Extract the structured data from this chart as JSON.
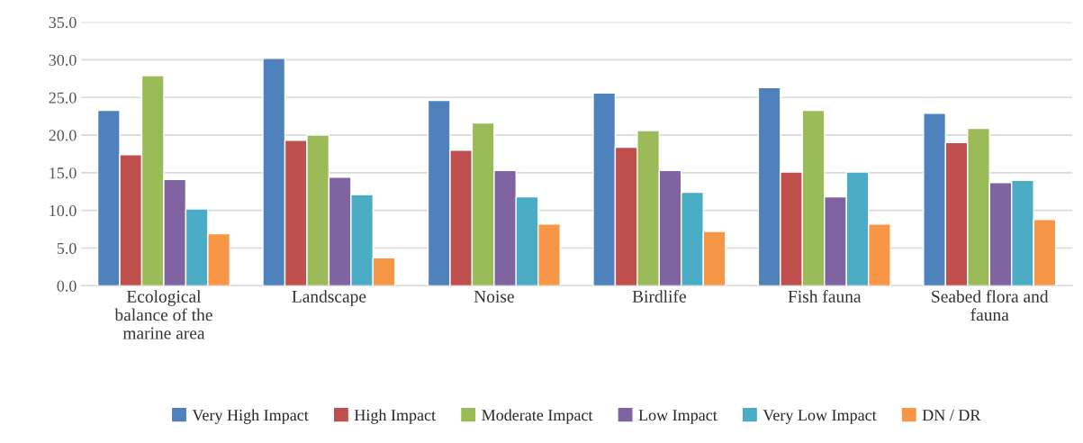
{
  "chart_data": {
    "type": "bar",
    "categories": [
      "Ecological\nbalance of the\nmarine area",
      "Landscape",
      "Noise",
      "Birdlife",
      "Fish fauna",
      "Seabed flora and\nfauna"
    ],
    "series": [
      {
        "name": "Very High Impact",
        "color": "#4f81bd",
        "values": [
          23.3,
          30.2,
          24.6,
          25.6,
          26.3,
          22.9
        ]
      },
      {
        "name": "High Impact",
        "color": "#c0504d",
        "values": [
          17.4,
          19.3,
          18.0,
          18.4,
          15.1,
          19.0
        ]
      },
      {
        "name": "Moderate Impact",
        "color": "#9bbb59",
        "values": [
          27.9,
          20.0,
          21.6,
          20.6,
          23.3,
          20.9
        ]
      },
      {
        "name": "Low Impact",
        "color": "#8064a2",
        "values": [
          14.1,
          14.4,
          15.3,
          15.3,
          11.8,
          13.7
        ]
      },
      {
        "name": "Very Low Impact",
        "color": "#4bacc6",
        "values": [
          10.2,
          12.1,
          11.8,
          12.4,
          15.1,
          14.0
        ]
      },
      {
        "name": "DN / DR",
        "color": "#f79646",
        "values": [
          6.9,
          3.7,
          8.2,
          7.2,
          8.2,
          8.8
        ]
      }
    ],
    "ylim": [
      0,
      35
    ],
    "yticks": [
      {
        "value": 0,
        "label": "0.0"
      },
      {
        "value": 5,
        "label": "5.0"
      },
      {
        "value": 10,
        "label": "10.0"
      },
      {
        "value": 15,
        "label": "15.0"
      },
      {
        "value": 20,
        "label": "20.0"
      },
      {
        "value": 25,
        "label": "25.0"
      },
      {
        "value": 30,
        "label": "30.0"
      },
      {
        "value": 35,
        "label": "35.0"
      }
    ],
    "grid": "y",
    "legend": "bottom"
  }
}
